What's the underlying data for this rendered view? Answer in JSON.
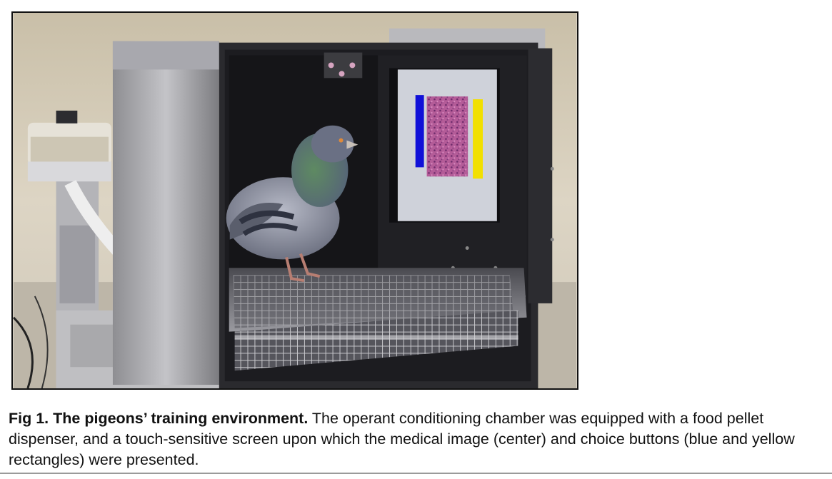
{
  "figure": {
    "caption_label": "Fig 1.",
    "caption_title": "The pigeons’ training environment.",
    "caption_text": "The operant conditioning chamber was equipped with a food pellet dispenser, and a touch-sensitive screen upon which the medical image (center) and choice buttons (blue and yellow rectangles) were presented."
  },
  "colors": {
    "choice_button_left": "#1010d8",
    "choice_button_right": "#f2e000",
    "medical_image": "#a04a8a",
    "chamber_interior": "#1c1c20",
    "background_wall": "#d8cfbe"
  }
}
